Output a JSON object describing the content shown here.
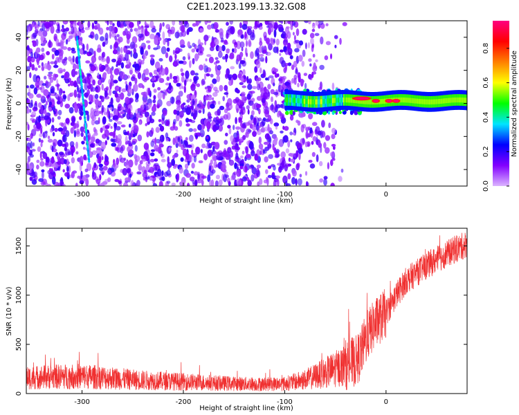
{
  "title": "C2E1.2023.199.13.32.G08",
  "chart_data": [
    {
      "type": "heatmap",
      "xlabel": "Height of straight line (km)",
      "ylabel": "Frequency (Hz)",
      "xlim": [
        -355,
        80
      ],
      "ylim": [
        -50,
        50
      ],
      "xticks": [
        -300,
        -200,
        -100,
        0
      ],
      "yticks": [
        -40,
        -20,
        0,
        20,
        40
      ],
      "colorbar": {
        "label": "Normalized spectral amplitude",
        "range": [
          0,
          0.96
        ],
        "ticks": [
          0.0,
          0.2,
          0.4,
          0.6,
          0.8
        ],
        "colormap": "rainbow",
        "colors": [
          "#dcb4ff",
          "#8200ff",
          "#0000ff",
          "#00e5ff",
          "#00ff00",
          "#ffff00",
          "#ff8000",
          "#ff0000",
          "#ff0080"
        ]
      },
      "features": {
        "diagonal_streak": {
          "x": [
            -305,
            -293
          ],
          "y": [
            40,
            -35
          ],
          "amplitude": 0.3
        },
        "carrier_line": {
          "x": [
            -100,
            80
          ],
          "y": [
            0,
            4
          ],
          "amplitude": 0.5
        },
        "carrier_peaks": [
          {
            "x": -24,
            "y": 3,
            "amplitude": 0.95
          },
          {
            "x": -10,
            "y": 1.5,
            "amplitude": 0.95
          },
          {
            "x": 3,
            "y": 1.5,
            "amplitude": 0.95
          },
          {
            "x": 10,
            "y": 1.5,
            "amplitude": 0.95
          }
        ],
        "noise_region": {
          "x": [
            -355,
            -40
          ],
          "y": [
            -50,
            50
          ],
          "amplitude": 0.15
        }
      }
    },
    {
      "type": "line",
      "xlabel": "Height of straight line (km)",
      "ylabel": "SNR (10 * v/v)",
      "xlim": [
        -355,
        80
      ],
      "ylim": [
        0,
        1680
      ],
      "xticks": [
        -300,
        -200,
        -100,
        0
      ],
      "yticks": [
        0,
        500,
        1000,
        1500
      ],
      "color": "#f03030",
      "x": [
        -355,
        -330,
        -305,
        -280,
        -250,
        -200,
        -150,
        -120,
        -100,
        -80,
        -60,
        -40,
        -30,
        -26,
        -22,
        -18,
        -10,
        0,
        10,
        20,
        40,
        60,
        80
      ],
      "y": [
        160,
        170,
        175,
        165,
        140,
        120,
        100,
        95,
        100,
        140,
        210,
        290,
        330,
        380,
        500,
        600,
        720,
        820,
        1000,
        1150,
        1300,
        1420,
        1520
      ]
    }
  ]
}
